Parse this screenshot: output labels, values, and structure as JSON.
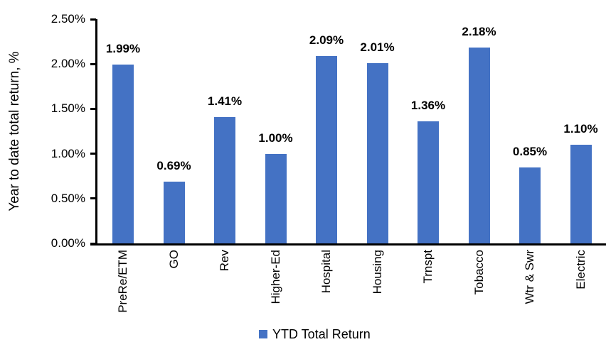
{
  "chart_data": {
    "type": "bar",
    "title": "",
    "categories": [
      "PreRe/ETM",
      "GO",
      "Rev",
      "Higher-Ed",
      "Hospital",
      "Housing",
      "Trnspt",
      "Tobacco",
      "Wtr & Swr",
      "Electric"
    ],
    "values": [
      1.99,
      0.69,
      1.41,
      1.0,
      2.09,
      2.01,
      1.36,
      2.18,
      0.85,
      1.1
    ],
    "data_labels": [
      "1.99%",
      "0.69%",
      "1.41%",
      "1.00%",
      "2.09%",
      "2.01%",
      "1.36%",
      "2.18%",
      "0.85%",
      "1.10%"
    ],
    "xlabel": "",
    "ylabel": "Year to date total return, %",
    "ylim": [
      0,
      2.5
    ],
    "yticks": [
      0,
      0.5,
      1.0,
      1.5,
      2.0,
      2.5
    ],
    "ytick_labels": [
      "0.00%",
      "0.50%",
      "1.00%",
      "1.50%",
      "2.00%",
      "2.50%"
    ],
    "grid": false,
    "bar_color": "#4472C4",
    "axis_color": "#000000",
    "legend": {
      "position": "bottom",
      "entries": [
        {
          "label": "YTD Total Return",
          "color": "#4472C4"
        }
      ]
    }
  }
}
